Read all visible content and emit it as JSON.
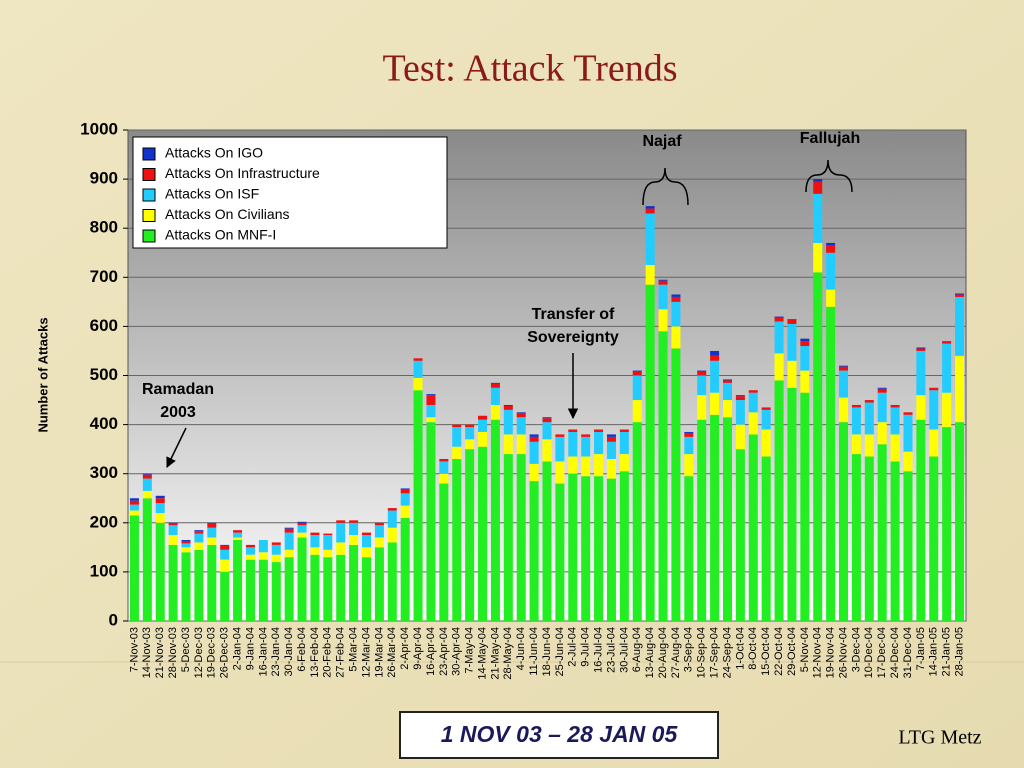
{
  "chart_data": {
    "type": "stacked_bar",
    "title": "Test: Attack Trends",
    "y_label": "Number of Attacks",
    "categories": [
      "7-Nov-03",
      "14-Nov-03",
      "21-Nov-03",
      "28-Nov-03",
      "5-Dec-03",
      "12-Dec-03",
      "19-Dec-03",
      "26-Dec-03",
      "2-Jan-04",
      "9-Jan-04",
      "16-Jan-04",
      "23-Jan-04",
      "30-Jan-04",
      "6-Feb-04",
      "13-Feb-04",
      "20-Feb-04",
      "27-Feb-04",
      "5-Mar-04",
      "12-Mar-04",
      "19-Mar-04",
      "26-Mar-04",
      "2-Apr-04",
      "9-Apr-04",
      "16-Apr-04",
      "23-Apr-04",
      "30-Apr-04",
      "7-May-04",
      "14-May-04",
      "21-May-04",
      "28-May-04",
      "4-Jun-04",
      "11-Jun-04",
      "18-Jun-04",
      "25-Jun-04",
      "2-Jul-04",
      "9-Jul-04",
      "16-Jul-04",
      "23-Jul-04",
      "30-Jul-04",
      "6-Aug-04",
      "13-Aug-04",
      "20-Aug-04",
      "27-Aug-04",
      "3-Sep-04",
      "10-Sep-04",
      "17-Sep-04",
      "24-Sep-04",
      "1-Oct-04",
      "8-Oct-04",
      "15-Oct-04",
      "22-Oct-04",
      "29-Oct-04",
      "5-Nov-04",
      "12-Nov-04",
      "19-Nov-04",
      "26-Nov-04",
      "3-Dec-04",
      "10-Dec-04",
      "17-Dec-04",
      "24-Dec-04",
      "31-Dec-04",
      "7-Jan-05",
      "14-Jan-05",
      "21-Jan-05",
      "28-Jan-05"
    ],
    "series": [
      {
        "name": "Attacks On MNF-I",
        "color": "#22ee22",
        "values": [
          215,
          250,
          200,
          155,
          140,
          145,
          155,
          100,
          165,
          125,
          125,
          120,
          130,
          170,
          135,
          130,
          135,
          155,
          130,
          150,
          160,
          210,
          470,
          405,
          280,
          330,
          350,
          355,
          410,
          340,
          340,
          285,
          325,
          280,
          300,
          295,
          295,
          290,
          305,
          405,
          685,
          590,
          555,
          295,
          410,
          420,
          415,
          350,
          380,
          335,
          490,
          475,
          465,
          710,
          640,
          405,
          340,
          335,
          360,
          325,
          305,
          410,
          335,
          395,
          405
        ]
      },
      {
        "name": "Attacks On Civilians",
        "color": "#ffff00",
        "values": [
          10,
          15,
          20,
          20,
          10,
          15,
          15,
          25,
          5,
          10,
          15,
          15,
          15,
          10,
          15,
          15,
          25,
          20,
          20,
          20,
          30,
          25,
          25,
          10,
          20,
          25,
          20,
          30,
          30,
          40,
          40,
          35,
          45,
          45,
          35,
          40,
          45,
          40,
          35,
          45,
          40,
          45,
          45,
          45,
          50,
          45,
          35,
          50,
          45,
          55,
          55,
          55,
          45,
          60,
          35,
          50,
          40,
          45,
          45,
          55,
          40,
          50,
          55,
          70,
          135
        ]
      },
      {
        "name": "Attacks On ISF",
        "color": "#22ccff",
        "values": [
          12,
          25,
          20,
          20,
          8,
          18,
          20,
          20,
          10,
          15,
          25,
          20,
          35,
          15,
          25,
          30,
          40,
          25,
          25,
          25,
          35,
          25,
          35,
          25,
          25,
          40,
          25,
          25,
          35,
          50,
          35,
          45,
          35,
          50,
          50,
          40,
          45,
          35,
          45,
          50,
          105,
          50,
          50,
          35,
          40,
          65,
          35,
          50,
          40,
          40,
          65,
          75,
          50,
          100,
          75,
          55,
          55,
          65,
          60,
          55,
          75,
          90,
          80,
          100,
          120
        ]
      },
      {
        "name": "Attacks On Infrastructure",
        "color": "#ee1111",
        "values": [
          8,
          8,
          10,
          3,
          5,
          5,
          8,
          8,
          5,
          5,
          0,
          5,
          8,
          5,
          5,
          3,
          5,
          5,
          5,
          5,
          5,
          8,
          5,
          20,
          5,
          5,
          5,
          8,
          8,
          8,
          8,
          10,
          8,
          5,
          5,
          5,
          5,
          10,
          5,
          8,
          10,
          8,
          10,
          8,
          8,
          10,
          5,
          8,
          5,
          5,
          8,
          10,
          10,
          25,
          15,
          8,
          5,
          5,
          8,
          5,
          5,
          5,
          5,
          5,
          5
        ]
      },
      {
        "name": "Attacks On IGO",
        "color": "#1133cc",
        "values": [
          5,
          2,
          5,
          2,
          2,
          2,
          2,
          2,
          0,
          0,
          0,
          0,
          2,
          2,
          0,
          0,
          0,
          0,
          0,
          0,
          0,
          2,
          0,
          2,
          0,
          0,
          0,
          0,
          2,
          2,
          2,
          5,
          2,
          0,
          0,
          0,
          0,
          5,
          0,
          2,
          5,
          2,
          5,
          2,
          2,
          10,
          2,
          2,
          0,
          0,
          2,
          0,
          5,
          5,
          5,
          2,
          0,
          0,
          2,
          0,
          0,
          2,
          0,
          0,
          2
        ]
      }
    ],
    "ylim": [
      0,
      1000
    ],
    "yticks": [
      0,
      100,
      200,
      300,
      400,
      500,
      600,
      700,
      800,
      900,
      1000
    ],
    "annotations": [
      {
        "text": [
          "Najaf"
        ]
      },
      {
        "text": [
          "Fallujah"
        ]
      },
      {
        "text": [
          "Transfer of",
          "Sovereignty"
        ]
      },
      {
        "text": [
          "Ramadan",
          "2003"
        ]
      }
    ],
    "date_range": "1 NOV 03 – 28 JAN 05",
    "author": "LTG Metz"
  }
}
